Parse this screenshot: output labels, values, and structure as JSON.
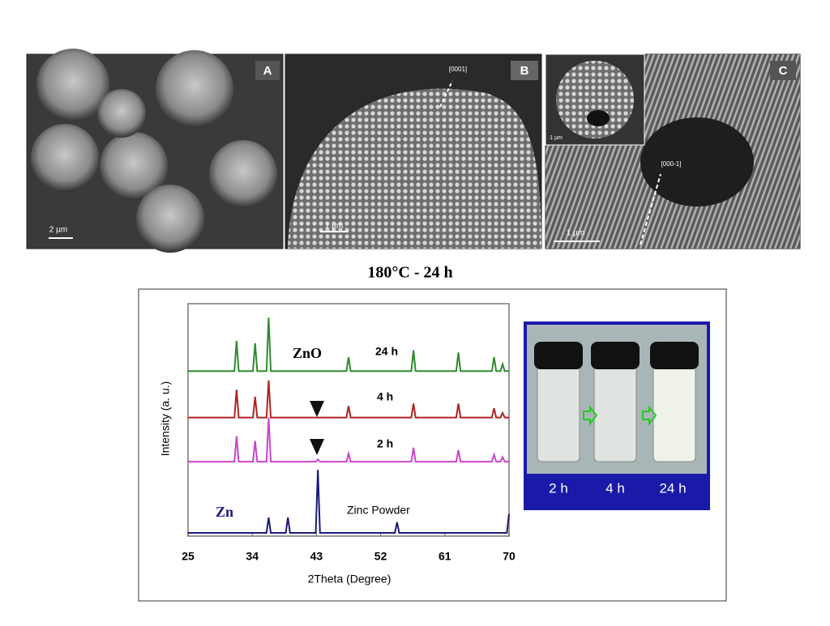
{
  "figure": {
    "panels": [
      {
        "label": "A",
        "scale": "2 µm"
      },
      {
        "label": "B",
        "scale": "1 µm",
        "direction": "[0001]"
      },
      {
        "label": "C",
        "scale": "1 µm",
        "direction": "[000-1]",
        "inset_scale": "1 µm"
      }
    ],
    "caption": "180°C - 24 h",
    "vials": [
      "2 h",
      "4 h",
      "24 h"
    ]
  },
  "chart_data": {
    "type": "line",
    "xlabel": "2Theta (Degree)",
    "ylabel": "Intensity (a. u.)",
    "annotations": [
      "ZnO",
      "Zn"
    ],
    "xlim": [
      25,
      70
    ],
    "xticks": [
      25,
      34,
      43,
      52,
      61,
      70
    ],
    "ylim": [
      0,
      100
    ],
    "series": [
      {
        "name": "24 h",
        "color": "#2e8b2e",
        "x": [
          25,
          31.5,
          31.8,
          32.1,
          34.1,
          34.4,
          34.7,
          36.0,
          36.3,
          36.6,
          47.2,
          47.5,
          47.8,
          56.3,
          56.6,
          56.9,
          62.6,
          62.9,
          63.2,
          67.6,
          67.9,
          68.2,
          68.8,
          69.1,
          69.4,
          70
        ],
        "values": [
          71,
          71,
          84,
          71,
          71,
          83,
          71,
          71,
          94,
          71,
          71,
          77,
          71,
          71,
          80,
          71,
          71,
          79,
          71,
          71,
          77,
          71,
          71,
          74,
          71,
          71
        ]
      },
      {
        "name": "4 h",
        "color": "#b22222",
        "x": [
          25,
          31.5,
          31.8,
          32.1,
          34.1,
          34.4,
          34.7,
          36.0,
          36.3,
          36.6,
          47.2,
          47.5,
          47.8,
          56.3,
          56.6,
          56.9,
          62.6,
          62.9,
          63.2,
          67.6,
          67.9,
          68.2,
          68.8,
          69.1,
          69.4,
          70
        ],
        "values": [
          51,
          51,
          63,
          51,
          51,
          60,
          51,
          51,
          67,
          51,
          51,
          56,
          51,
          51,
          57,
          51,
          51,
          57,
          51,
          51,
          55,
          51,
          51,
          53,
          51,
          51
        ]
      },
      {
        "name": "2 h",
        "color": "#cc44cc",
        "x": [
          25,
          31.5,
          31.8,
          32.1,
          34.1,
          34.4,
          34.7,
          36.0,
          36.3,
          36.6,
          42.9,
          43.2,
          43.5,
          47.2,
          47.5,
          47.8,
          56.3,
          56.6,
          56.9,
          62.6,
          62.9,
          63.2,
          67.6,
          67.9,
          68.2,
          68.8,
          69.1,
          69.4,
          70
        ],
        "values": [
          32,
          32,
          43,
          32,
          32,
          41,
          32,
          32,
          51,
          32,
          32,
          33,
          32,
          32,
          35.5,
          32,
          32,
          38,
          32,
          32,
          37,
          32,
          32,
          35,
          32,
          32,
          34,
          32,
          32
        ]
      },
      {
        "name": "Zinc Powder",
        "color": "#1a1a7a",
        "x": [
          25,
          36.0,
          36.3,
          36.6,
          38.7,
          39.0,
          39.3,
          42.9,
          43.2,
          43.5,
          54.0,
          54.3,
          54.6,
          69.7,
          70
        ],
        "values": [
          1.4,
          1.4,
          8,
          1.4,
          1.4,
          8,
          1.4,
          1.4,
          28.5,
          1.4,
          1.4,
          6,
          1.4,
          1.4,
          9.5
        ]
      }
    ]
  }
}
